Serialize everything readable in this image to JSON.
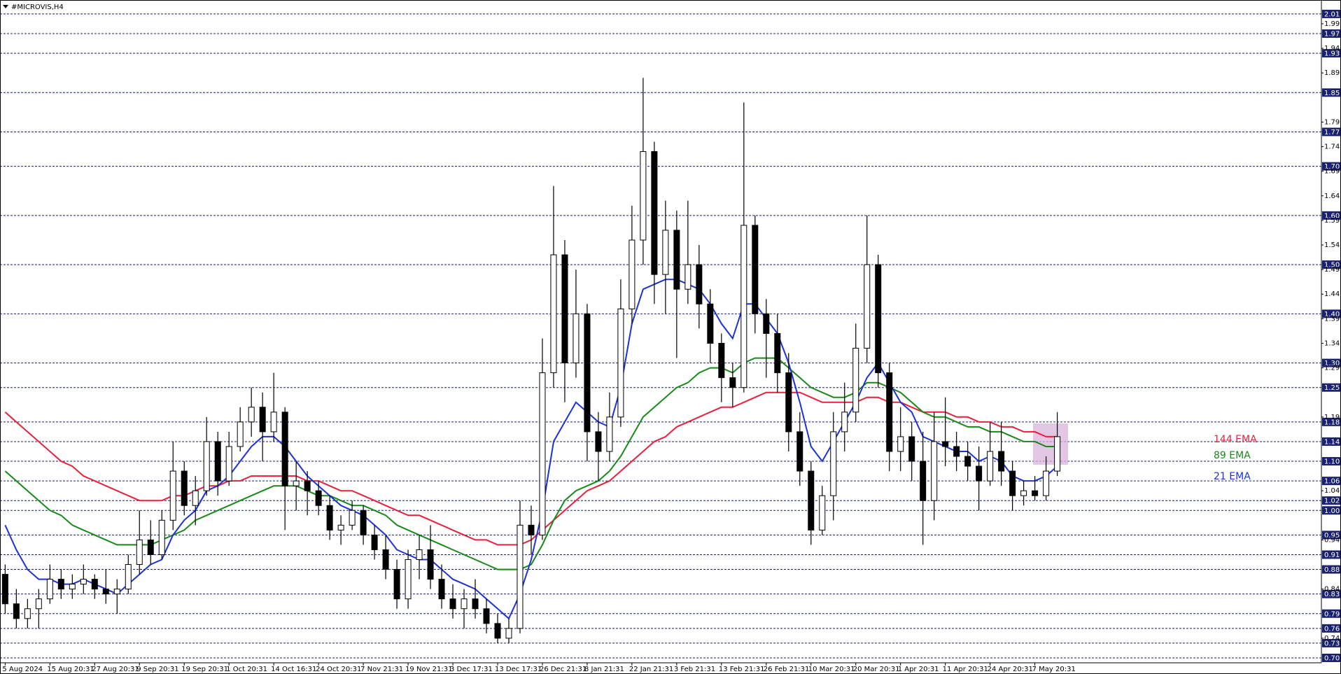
{
  "chart_data": {
    "type": "candlestick",
    "title": "#MICROVIS,H4",
    "open": [
      0.87,
      0.81,
      0.78,
      0.8,
      0.82,
      0.86,
      0.84,
      0.85,
      0.86,
      0.84,
      0.83,
      0.84,
      0.89,
      0.94,
      0.91,
      0.98,
      1.08,
      1.01,
      1.04,
      1.14,
      1.06,
      1.13,
      1.18,
      1.21,
      1.16,
      1.2,
      1.05,
      1.06,
      1.04,
      1.01,
      0.96,
      0.97,
      1.0,
      0.95,
      0.92,
      0.88,
      0.82,
      0.9,
      0.92,
      0.86,
      0.82,
      0.8,
      0.82,
      0.8,
      0.77,
      0.74,
      0.76,
      0.97,
      0.95,
      1.28,
      1.52,
      1.3,
      1.4,
      1.16,
      1.12,
      1.19,
      1.41,
      1.55,
      1.73,
      1.48,
      1.57,
      1.45,
      1.5,
      1.42,
      1.34,
      1.27,
      1.25,
      1.58,
      1.4,
      1.36,
      1.28,
      1.16,
      1.08,
      0.96,
      1.03,
      1.16,
      1.2,
      1.33,
      1.5,
      1.28,
      1.12,
      1.15,
      1.1,
      1.02,
      1.14,
      1.13,
      1.11,
      1.09,
      1.06,
      1.12,
      1.08,
      1.03,
      1.04,
      1.03,
      1.08
    ],
    "high": [
      0.89,
      0.84,
      0.82,
      0.84,
      0.89,
      0.88,
      0.87,
      0.89,
      0.87,
      0.88,
      0.86,
      0.91,
      1.0,
      0.98,
      1.0,
      1.14,
      1.1,
      1.07,
      1.19,
      1.16,
      1.16,
      1.21,
      1.25,
      1.24,
      1.28,
      1.21,
      1.1,
      1.08,
      1.06,
      1.03,
      0.99,
      1.02,
      1.01,
      0.97,
      0.95,
      0.9,
      0.92,
      0.95,
      0.97,
      0.89,
      0.85,
      0.84,
      0.86,
      0.82,
      0.79,
      0.78,
      1.02,
      1.01,
      1.35,
      1.66,
      1.55,
      1.49,
      1.42,
      1.2,
      1.24,
      1.47,
      1.62,
      1.88,
      1.75,
      1.63,
      1.61,
      1.63,
      1.54,
      1.45,
      1.36,
      1.3,
      1.83,
      1.6,
      1.43,
      1.4,
      1.32,
      1.2,
      1.1,
      1.05,
      1.2,
      1.26,
      1.38,
      1.6,
      1.52,
      1.3,
      1.21,
      1.18,
      1.16,
      1.2,
      1.23,
      1.16,
      1.14,
      1.13,
      1.18,
      1.18,
      1.1,
      1.06,
      1.07,
      1.11,
      1.2
    ],
    "low": [
      0.79,
      0.76,
      0.76,
      0.76,
      0.81,
      0.82,
      0.82,
      0.83,
      0.82,
      0.81,
      0.79,
      0.83,
      0.87,
      0.89,
      0.9,
      0.96,
      0.99,
      0.97,
      1.03,
      1.03,
      1.05,
      1.12,
      1.15,
      1.1,
      1.14,
      0.96,
      1.0,
      0.99,
      0.99,
      0.94,
      0.93,
      0.96,
      0.93,
      0.9,
      0.86,
      0.8,
      0.8,
      0.86,
      0.84,
      0.8,
      0.78,
      0.76,
      0.78,
      0.75,
      0.73,
      0.73,
      0.75,
      0.91,
      0.94,
      1.25,
      1.22,
      1.27,
      1.1,
      1.06,
      1.1,
      1.17,
      1.38,
      1.5,
      1.42,
      1.4,
      1.31,
      1.42,
      1.37,
      1.3,
      1.22,
      1.21,
      1.24,
      1.36,
      1.27,
      1.24,
      1.12,
      1.05,
      0.93,
      0.95,
      0.98,
      1.12,
      1.18,
      1.3,
      1.25,
      1.08,
      1.08,
      1.06,
      0.93,
      0.98,
      1.09,
      1.08,
      1.06,
      1.0,
      1.05,
      1.05,
      1.0,
      1.01,
      1.02,
      1.02,
      1.07
    ],
    "close": [
      0.81,
      0.78,
      0.8,
      0.82,
      0.86,
      0.84,
      0.85,
      0.86,
      0.84,
      0.83,
      0.84,
      0.89,
      0.94,
      0.91,
      0.98,
      1.08,
      1.01,
      1.04,
      1.14,
      1.06,
      1.13,
      1.18,
      1.21,
      1.16,
      1.2,
      1.05,
      1.06,
      1.04,
      1.01,
      0.96,
      0.97,
      1.0,
      0.95,
      0.92,
      0.88,
      0.82,
      0.9,
      0.92,
      0.86,
      0.82,
      0.8,
      0.82,
      0.8,
      0.77,
      0.74,
      0.76,
      0.97,
      0.95,
      1.28,
      1.52,
      1.3,
      1.4,
      1.16,
      1.12,
      1.19,
      1.41,
      1.55,
      1.73,
      1.48,
      1.57,
      1.45,
      1.5,
      1.42,
      1.34,
      1.27,
      1.25,
      1.58,
      1.4,
      1.36,
      1.28,
      1.16,
      1.08,
      0.96,
      1.03,
      1.16,
      1.2,
      1.33,
      1.5,
      1.28,
      1.12,
      1.15,
      1.1,
      1.02,
      1.14,
      1.13,
      1.11,
      1.09,
      1.06,
      1.12,
      1.08,
      1.03,
      1.04,
      1.03,
      1.08,
      1.15
    ],
    "series": [
      {
        "name": "144 EMA",
        "color": "#e8203c",
        "values": [
          1.2,
          1.18,
          1.16,
          1.14,
          1.12,
          1.1,
          1.09,
          1.07,
          1.06,
          1.05,
          1.04,
          1.03,
          1.02,
          1.02,
          1.02,
          1.03,
          1.03,
          1.04,
          1.05,
          1.05,
          1.06,
          1.06,
          1.07,
          1.07,
          1.07,
          1.07,
          1.07,
          1.06,
          1.06,
          1.05,
          1.04,
          1.04,
          1.03,
          1.02,
          1.01,
          1.0,
          0.99,
          0.99,
          0.98,
          0.97,
          0.96,
          0.95,
          0.94,
          0.94,
          0.93,
          0.93,
          0.93,
          0.94,
          0.96,
          0.98,
          1.0,
          1.02,
          1.04,
          1.05,
          1.06,
          1.08,
          1.1,
          1.12,
          1.14,
          1.15,
          1.17,
          1.18,
          1.19,
          1.2,
          1.21,
          1.21,
          1.22,
          1.23,
          1.24,
          1.24,
          1.24,
          1.24,
          1.23,
          1.22,
          1.22,
          1.22,
          1.22,
          1.23,
          1.23,
          1.22,
          1.22,
          1.21,
          1.2,
          1.2,
          1.2,
          1.19,
          1.19,
          1.18,
          1.18,
          1.17,
          1.17,
          1.16,
          1.16,
          1.15,
          1.15
        ]
      },
      {
        "name": "89 EMA",
        "color": "#178a17",
        "values": [
          1.08,
          1.06,
          1.04,
          1.02,
          1.0,
          0.99,
          0.97,
          0.96,
          0.95,
          0.94,
          0.93,
          0.93,
          0.93,
          0.93,
          0.94,
          0.95,
          0.96,
          0.98,
          0.99,
          1.0,
          1.01,
          1.02,
          1.03,
          1.04,
          1.05,
          1.05,
          1.05,
          1.04,
          1.03,
          1.03,
          1.02,
          1.01,
          1.01,
          1.0,
          0.99,
          0.97,
          0.96,
          0.95,
          0.94,
          0.93,
          0.92,
          0.91,
          0.9,
          0.89,
          0.88,
          0.88,
          0.88,
          0.89,
          0.93,
          0.98,
          1.02,
          1.04,
          1.05,
          1.06,
          1.08,
          1.11,
          1.15,
          1.19,
          1.21,
          1.23,
          1.25,
          1.26,
          1.28,
          1.29,
          1.29,
          1.28,
          1.3,
          1.31,
          1.31,
          1.31,
          1.29,
          1.27,
          1.25,
          1.24,
          1.23,
          1.23,
          1.24,
          1.26,
          1.26,
          1.25,
          1.24,
          1.22,
          1.2,
          1.19,
          1.19,
          1.18,
          1.17,
          1.17,
          1.16,
          1.16,
          1.15,
          1.14,
          1.14,
          1.13,
          1.13
        ]
      },
      {
        "name": "21 EMA",
        "color": "#1c32d6",
        "values": [
          0.97,
          0.92,
          0.88,
          0.86,
          0.86,
          0.85,
          0.85,
          0.86,
          0.85,
          0.84,
          0.83,
          0.85,
          0.87,
          0.89,
          0.9,
          0.95,
          0.98,
          1.0,
          1.04,
          1.05,
          1.07,
          1.1,
          1.13,
          1.15,
          1.15,
          1.13,
          1.1,
          1.07,
          1.05,
          1.03,
          1.01,
          1.0,
          0.99,
          0.97,
          0.95,
          0.92,
          0.91,
          0.9,
          0.9,
          0.88,
          0.86,
          0.85,
          0.84,
          0.82,
          0.8,
          0.78,
          0.83,
          0.9,
          1.0,
          1.14,
          1.18,
          1.22,
          1.2,
          1.18,
          1.17,
          1.25,
          1.38,
          1.45,
          1.46,
          1.47,
          1.47,
          1.46,
          1.45,
          1.42,
          1.38,
          1.35,
          1.42,
          1.42,
          1.39,
          1.36,
          1.3,
          1.22,
          1.13,
          1.1,
          1.14,
          1.18,
          1.22,
          1.27,
          1.3,
          1.26,
          1.22,
          1.2,
          1.15,
          1.14,
          1.13,
          1.12,
          1.12,
          1.1,
          1.11,
          1.1,
          1.07,
          1.06,
          1.06,
          1.07,
          1.09
        ]
      }
    ],
    "xlim": [
      -0.46,
      117.6
    ],
    "xticks": [
      {
        "value": 0,
        "label": "5 Aug 2024"
      },
      {
        "value": 4,
        "label": "15 Aug 20:31"
      },
      {
        "value": 8,
        "label": "27 Aug 20:31"
      },
      {
        "value": 12,
        "label": "9 Sep 20:31"
      },
      {
        "value": 16,
        "label": "19 Sep 20:31"
      },
      {
        "value": 20,
        "label": "1 Oct 20:31"
      },
      {
        "value": 24,
        "label": "14 Oct 16:31"
      },
      {
        "value": 28,
        "label": "24 Oct 20:31"
      },
      {
        "value": 32,
        "label": "7 Nov 21:31"
      },
      {
        "value": 36,
        "label": "19 Nov 21:31"
      },
      {
        "value": 40,
        "label": "3 Dec 17:31"
      },
      {
        "value": 44,
        "label": "13 Dec 17:31"
      },
      {
        "value": 48,
        "label": "26 Dec 21:31"
      },
      {
        "value": 52,
        "label": "8 Jan 21:31"
      },
      {
        "value": 56,
        "label": "22 Jan 21:31"
      },
      {
        "value": 60,
        "label": "3 Feb 21:31"
      },
      {
        "value": 64,
        "label": "13 Feb 21:31"
      },
      {
        "value": 68,
        "label": "26 Feb 21:31"
      },
      {
        "value": 72,
        "label": "10 Mar 20:31"
      },
      {
        "value": 76,
        "label": "20 Mar 20:31"
      },
      {
        "value": 80,
        "label": "1 Apr 20:31"
      },
      {
        "value": 84,
        "label": "11 Apr 20:31"
      },
      {
        "value": 88,
        "label": "24 Apr 20:31"
      },
      {
        "value": 92,
        "label": "7 May 20:31"
      }
    ],
    "ylim": [
      0.69,
      2.017
    ],
    "yticks": [
      1.99,
      1.94,
      1.89,
      1.79,
      1.74,
      1.69,
      1.64,
      1.59,
      1.54,
      1.49,
      1.44,
      1.39,
      1.34,
      1.29,
      1.19,
      1.04,
      0.94,
      0.84,
      0.74
    ],
    "levels": [
      2.01,
      1.97,
      1.93,
      1.85,
      1.77,
      {
        "value": 1.7,
        "label": "1.70"
      },
      {
        "value": 1.6,
        "label": "1.60"
      },
      {
        "value": 1.5,
        "label": "1.50"
      },
      {
        "value": 1.4,
        "label": "1.40"
      },
      {
        "value": 1.3,
        "label": "1.30"
      },
      1.25,
      1.18,
      1.14,
      {
        "value": 1.1,
        "label": "1.10"
      },
      1.06,
      1.02,
      {
        "value": 1,
        "label": "1.00"
      },
      0.95,
      0.91,
      0.88,
      0.83,
      0.79,
      0.76,
      0.73,
      {
        "value": 0.7,
        "label": "0.70"
      }
    ],
    "level_color": "#1a2270"
  }
}
